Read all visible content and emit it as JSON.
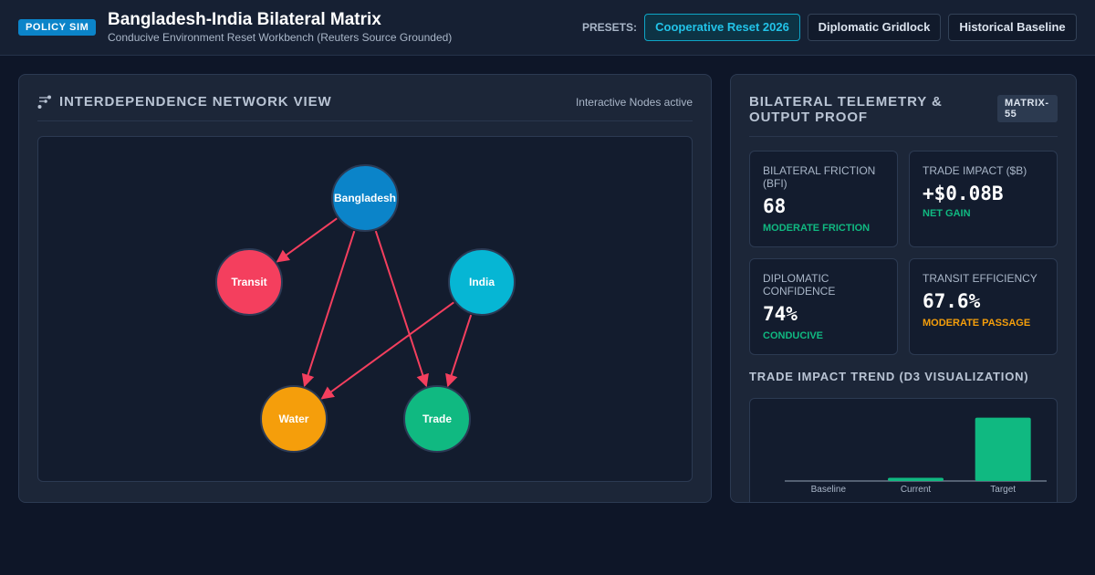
{
  "header": {
    "badge": "POLICY SIM",
    "title": "Bangladesh-India Bilateral Matrix",
    "subtitle": "Conducive Environment Reset Workbench (Reuters Source Grounded)",
    "presets_label": "PRESETS:",
    "presets": [
      {
        "label": "Cooperative Reset 2026",
        "active": true
      },
      {
        "label": "Diplomatic Gridlock",
        "active": false
      },
      {
        "label": "Historical Baseline",
        "active": false
      }
    ]
  },
  "network": {
    "icon": "network-icon",
    "title": "INTERDEPENDENCE NETWORK VIEW",
    "status": "Interactive Nodes active",
    "nodes": [
      {
        "id": "bangladesh",
        "label": "Bangladesh",
        "color": "#0b84c9"
      },
      {
        "id": "transit",
        "label": "Transit",
        "color": "#f43f5e"
      },
      {
        "id": "india",
        "label": "India",
        "color": "#06b6d4"
      },
      {
        "id": "water",
        "label": "Water",
        "color": "#f59e0b"
      },
      {
        "id": "trade",
        "label": "Trade",
        "color": "#10b981"
      }
    ],
    "edges": [
      {
        "from": "bangladesh",
        "to": "transit"
      },
      {
        "from": "bangladesh",
        "to": "water"
      },
      {
        "from": "bangladesh",
        "to": "trade"
      },
      {
        "from": "india",
        "to": "water"
      },
      {
        "from": "india",
        "to": "trade"
      }
    ],
    "edge_color": "#f43f5e"
  },
  "telemetry": {
    "title": "BILATERAL TELEMETRY & OUTPUT PROOF",
    "badge": "MATRIX-55",
    "metrics": [
      {
        "label": "BILATERAL FRICTION (BFI)",
        "value": "68",
        "note": "MODERATE FRICTION",
        "note_color": "#10b981"
      },
      {
        "label": "TRADE IMPACT ($B)",
        "value": "+$0.08B",
        "note": "NET GAIN",
        "note_color": "#10b981"
      },
      {
        "label": "DIPLOMATIC CONFIDENCE",
        "value": "74%",
        "note": "CONDUCIVE",
        "note_color": "#10b981"
      },
      {
        "label": "TRANSIT EFFICIENCY",
        "value": "67.6%",
        "note": "MODERATE PASSAGE",
        "note_color": "#f59e0b"
      }
    ]
  },
  "trend": {
    "title": "TRADE IMPACT TREND (D3 VISUALIZATION)"
  },
  "chart_data": {
    "type": "bar",
    "categories": [
      "Baseline",
      "Current",
      "Target"
    ],
    "values": [
      0,
      0.08,
      1.6
    ],
    "colors": [
      "#10b981",
      "#10b981",
      "#10b981"
    ],
    "ylim": [
      0,
      1.8
    ],
    "grid": false
  }
}
